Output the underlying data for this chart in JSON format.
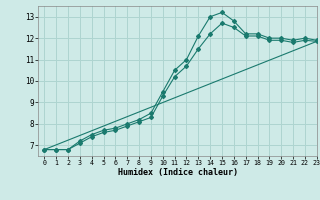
{
  "title": "",
  "xlabel": "Humidex (Indice chaleur)",
  "ylabel": "",
  "background_color": "#ceeae7",
  "grid_color": "#aed4d0",
  "line_color": "#1a7a6e",
  "xlim": [
    -0.5,
    23
  ],
  "ylim": [
    6.5,
    13.5
  ],
  "xticks": [
    0,
    1,
    2,
    3,
    4,
    5,
    6,
    7,
    8,
    9,
    10,
    11,
    12,
    13,
    14,
    15,
    16,
    17,
    18,
    19,
    20,
    21,
    22,
    23
  ],
  "yticks": [
    7,
    8,
    9,
    10,
    11,
    12,
    13
  ],
  "series": [
    {
      "x": [
        0,
        1,
        2,
        3,
        4,
        5,
        6,
        7,
        8,
        9,
        10,
        11,
        12,
        13,
        14,
        15,
        16,
        17,
        18,
        19,
        20,
        21,
        22,
        23
      ],
      "y": [
        6.8,
        6.8,
        6.8,
        7.2,
        7.5,
        7.7,
        7.8,
        8.0,
        8.2,
        8.5,
        9.5,
        10.5,
        11.0,
        12.1,
        13.0,
        13.2,
        12.8,
        12.2,
        12.2,
        12.0,
        12.0,
        11.9,
        12.0,
        11.9
      ],
      "markers": true
    },
    {
      "x": [
        0,
        1,
        2,
        3,
        4,
        5,
        6,
        7,
        8,
        9,
        10,
        11,
        12,
        13,
        14,
        15,
        16,
        17,
        18,
        19,
        20,
        21,
        22,
        23
      ],
      "y": [
        6.8,
        6.8,
        6.8,
        7.1,
        7.4,
        7.6,
        7.7,
        7.9,
        8.1,
        8.3,
        9.3,
        10.2,
        10.7,
        11.5,
        12.2,
        12.7,
        12.5,
        12.1,
        12.1,
        11.9,
        11.9,
        11.8,
        11.9,
        11.85
      ],
      "markers": true
    },
    {
      "x": [
        0,
        23
      ],
      "y": [
        6.8,
        11.85
      ],
      "markers": false
    }
  ]
}
